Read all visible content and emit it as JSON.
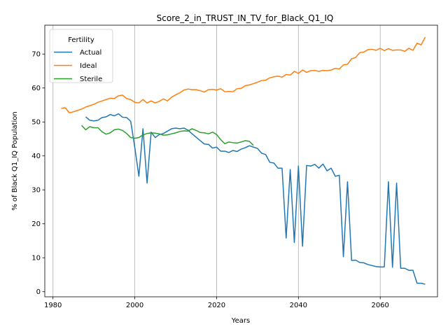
{
  "chart_data": {
    "type": "line",
    "title": "Score_2_in_TRUST_IN_TV_for_Black_Q1_IQ",
    "xlabel": "Years",
    "ylabel": "% of Black Q1_IQ Population",
    "xlim": [
      1978,
      2074
    ],
    "ylim": [
      -1.5,
      78.5
    ],
    "xticks": [
      1980,
      2000,
      2020,
      2040,
      2060
    ],
    "yticks": [
      0,
      10,
      20,
      30,
      40,
      50,
      60,
      70
    ],
    "grid": "x-only",
    "legend": {
      "title": "Fertility",
      "placement": "top-left"
    },
    "series": [
      {
        "name": "Actual",
        "color": "#1f77b4",
        "points": [
          [
            1988,
            51.5
          ],
          [
            1989,
            50.5
          ],
          [
            1990,
            50.3
          ],
          [
            1991,
            50.5
          ],
          [
            1992,
            51.3
          ],
          [
            1993,
            51.5
          ],
          [
            1994,
            52.2
          ],
          [
            1995,
            51.8
          ],
          [
            1996,
            52.4
          ],
          [
            1997,
            51.4
          ],
          [
            1998,
            51.3
          ],
          [
            1999,
            50.2
          ],
          [
            2000,
            42.5
          ],
          [
            2001,
            34.0
          ],
          [
            2002,
            48.0
          ],
          [
            2003,
            32.0
          ],
          [
            2004,
            47.0
          ],
          [
            2005,
            45.4
          ],
          [
            2006,
            46.3
          ],
          [
            2007,
            46.6
          ],
          [
            2008,
            47.3
          ],
          [
            2009,
            48.0
          ],
          [
            2010,
            48.2
          ],
          [
            2011,
            48.0
          ],
          [
            2012,
            48.2
          ],
          [
            2013,
            47.6
          ],
          [
            2014,
            46.5
          ],
          [
            2015,
            45.5
          ],
          [
            2016,
            44.5
          ],
          [
            2017,
            43.5
          ],
          [
            2018,
            43.4
          ],
          [
            2019,
            42.3
          ],
          [
            2020,
            42.6
          ],
          [
            2021,
            41.4
          ],
          [
            2022,
            41.4
          ],
          [
            2023,
            41.0
          ],
          [
            2024,
            41.6
          ],
          [
            2025,
            41.3
          ],
          [
            2026,
            42.0
          ],
          [
            2027,
            42.4
          ],
          [
            2028,
            43.0
          ],
          [
            2029,
            42.6
          ],
          [
            2030,
            42.2
          ],
          [
            2031,
            40.8
          ],
          [
            2032,
            40.4
          ],
          [
            2033,
            38.1
          ],
          [
            2034,
            37.9
          ],
          [
            2035,
            36.4
          ],
          [
            2036,
            36.4
          ],
          [
            2037,
            15.8
          ],
          [
            2038,
            36.0
          ],
          [
            2039,
            14.5
          ],
          [
            2040,
            37.0
          ],
          [
            2041,
            13.4
          ],
          [
            2042,
            37.2
          ],
          [
            2043,
            37.0
          ],
          [
            2044,
            37.5
          ],
          [
            2045,
            36.4
          ],
          [
            2046,
            37.6
          ],
          [
            2047,
            35.6
          ],
          [
            2048,
            36.4
          ],
          [
            2049,
            34.0
          ],
          [
            2050,
            34.3
          ],
          [
            2051,
            10.3
          ],
          [
            2052,
            32.4
          ],
          [
            2053,
            9.2
          ],
          [
            2054,
            9.3
          ],
          [
            2055,
            8.6
          ],
          [
            2056,
            8.5
          ],
          [
            2057,
            8.0
          ],
          [
            2058,
            7.7
          ],
          [
            2059,
            7.4
          ],
          [
            2060,
            7.3
          ],
          [
            2061,
            7.3
          ],
          [
            2062,
            32.4
          ],
          [
            2063,
            7.2
          ],
          [
            2064,
            32.0
          ],
          [
            2065,
            6.9
          ],
          [
            2066,
            6.9
          ],
          [
            2067,
            6.3
          ],
          [
            2068,
            6.3
          ],
          [
            2069,
            2.5
          ],
          [
            2070,
            2.5
          ],
          [
            2071,
            2.2
          ]
        ]
      },
      {
        "name": "Ideal",
        "color": "#ff7f0e",
        "points": [
          [
            1982,
            54.0
          ],
          [
            1983,
            54.2
          ],
          [
            1984,
            52.7
          ],
          [
            1985,
            53.0
          ],
          [
            1986,
            53.4
          ],
          [
            1987,
            53.8
          ],
          [
            1988,
            54.4
          ],
          [
            1989,
            54.8
          ],
          [
            1990,
            55.2
          ],
          [
            1991,
            55.8
          ],
          [
            1992,
            56.2
          ],
          [
            1993,
            56.6
          ],
          [
            1994,
            57.0
          ],
          [
            1995,
            56.9
          ],
          [
            1996,
            57.7
          ],
          [
            1997,
            57.9
          ],
          [
            1998,
            56.9
          ],
          [
            1999,
            56.6
          ],
          [
            2000,
            55.8
          ],
          [
            2001,
            55.6
          ],
          [
            2002,
            56.6
          ],
          [
            2003,
            55.6
          ],
          [
            2004,
            56.2
          ],
          [
            2005,
            55.6
          ],
          [
            2006,
            56.1
          ],
          [
            2007,
            56.8
          ],
          [
            2008,
            56.2
          ],
          [
            2009,
            57.3
          ],
          [
            2010,
            58.0
          ],
          [
            2011,
            58.6
          ],
          [
            2012,
            59.4
          ],
          [
            2013,
            59.7
          ],
          [
            2014,
            59.5
          ],
          [
            2015,
            59.5
          ],
          [
            2016,
            59.2
          ],
          [
            2017,
            58.8
          ],
          [
            2018,
            59.5
          ],
          [
            2019,
            59.6
          ],
          [
            2020,
            59.4
          ],
          [
            2021,
            59.8
          ],
          [
            2022,
            58.9
          ],
          [
            2023,
            59.0
          ],
          [
            2024,
            58.9
          ],
          [
            2025,
            59.8
          ],
          [
            2026,
            59.9
          ],
          [
            2027,
            60.7
          ],
          [
            2028,
            60.9
          ],
          [
            2029,
            61.3
          ],
          [
            2030,
            61.7
          ],
          [
            2031,
            62.2
          ],
          [
            2032,
            62.3
          ],
          [
            2033,
            63.0
          ],
          [
            2034,
            63.3
          ],
          [
            2035,
            63.5
          ],
          [
            2036,
            63.2
          ],
          [
            2037,
            64.0
          ],
          [
            2038,
            63.8
          ],
          [
            2039,
            64.9
          ],
          [
            2040,
            64.3
          ],
          [
            2041,
            65.3
          ],
          [
            2042,
            64.6
          ],
          [
            2043,
            65.1
          ],
          [
            2044,
            65.2
          ],
          [
            2045,
            64.9
          ],
          [
            2046,
            65.2
          ],
          [
            2047,
            65.1
          ],
          [
            2048,
            65.3
          ],
          [
            2049,
            65.8
          ],
          [
            2050,
            65.6
          ],
          [
            2051,
            66.8
          ],
          [
            2052,
            67.0
          ],
          [
            2053,
            68.6
          ],
          [
            2054,
            69.0
          ],
          [
            2055,
            70.4
          ],
          [
            2056,
            70.6
          ],
          [
            2057,
            71.3
          ],
          [
            2058,
            71.4
          ],
          [
            2059,
            71.1
          ],
          [
            2060,
            71.7
          ],
          [
            2061,
            71.0
          ],
          [
            2062,
            71.6
          ],
          [
            2063,
            71.1
          ],
          [
            2064,
            71.2
          ],
          [
            2065,
            71.2
          ],
          [
            2066,
            70.8
          ],
          [
            2067,
            71.7
          ],
          [
            2068,
            71.1
          ],
          [
            2069,
            73.2
          ],
          [
            2070,
            72.7
          ],
          [
            2071,
            75.0
          ]
        ]
      },
      {
        "name": "Sterile",
        "color": "#2ca02c",
        "points": [
          [
            1987,
            49.0
          ],
          [
            1988,
            47.7
          ],
          [
            1989,
            48.6
          ],
          [
            1990,
            48.3
          ],
          [
            1991,
            48.3
          ],
          [
            1992,
            47.1
          ],
          [
            1993,
            46.4
          ],
          [
            1994,
            46.8
          ],
          [
            1995,
            47.7
          ],
          [
            1996,
            47.9
          ],
          [
            1997,
            47.5
          ],
          [
            1998,
            46.6
          ],
          [
            1999,
            45.4
          ],
          [
            2000,
            45.2
          ],
          [
            2001,
            45.4
          ],
          [
            2002,
            46.2
          ],
          [
            2003,
            46.6
          ],
          [
            2004,
            46.8
          ],
          [
            2005,
            46.7
          ],
          [
            2006,
            46.5
          ],
          [
            2007,
            46.1
          ],
          [
            2008,
            46.2
          ],
          [
            2009,
            46.5
          ],
          [
            2010,
            46.8
          ],
          [
            2011,
            47.2
          ],
          [
            2012,
            47.4
          ],
          [
            2013,
            47.3
          ],
          [
            2014,
            48.0
          ],
          [
            2015,
            47.5
          ],
          [
            2016,
            46.9
          ],
          [
            2017,
            46.8
          ],
          [
            2018,
            46.5
          ],
          [
            2019,
            47.0
          ],
          [
            2020,
            46.3
          ],
          [
            2021,
            44.8
          ],
          [
            2022,
            43.6
          ],
          [
            2023,
            44.1
          ],
          [
            2024,
            43.9
          ],
          [
            2025,
            43.8
          ],
          [
            2026,
            44.1
          ],
          [
            2027,
            44.5
          ],
          [
            2028,
            44.3
          ],
          [
            2029,
            43.1
          ]
        ]
      }
    ]
  }
}
